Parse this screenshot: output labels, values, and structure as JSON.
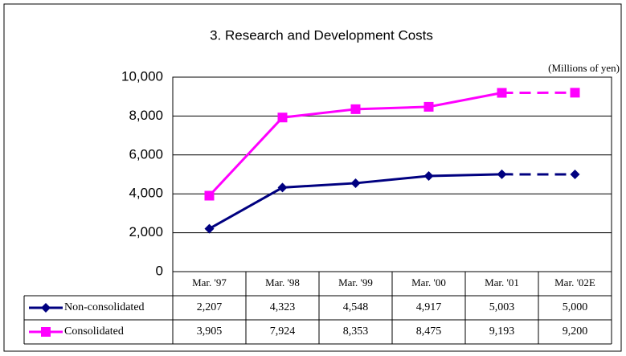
{
  "chart_data": {
    "type": "line",
    "title": "3. Research and Development Costs",
    "annotation": "(Millions of yen)",
    "categories": [
      "Mar. '97",
      "Mar. '98",
      "Mar. '99",
      "Mar. '00",
      "Mar. '01",
      "Mar. '02E"
    ],
    "series": [
      {
        "name": "Non-consolidated",
        "color": "#000080",
        "marker": "diamond",
        "values": [
          2207,
          4323,
          4548,
          4917,
          5003,
          5000
        ],
        "value_labels": [
          "2,207",
          "4,323",
          "4,548",
          "4,917",
          "5,003",
          "5,000"
        ]
      },
      {
        "name": "Consolidated",
        "color": "#ff00ff",
        "marker": "square",
        "values": [
          3905,
          7924,
          8353,
          8475,
          9193,
          9200
        ],
        "value_labels": [
          "3,905",
          "7,924",
          "8,353",
          "8,475",
          "9,193",
          "9,200"
        ]
      }
    ],
    "dashed_last_segment": true,
    "ylim": [
      0,
      10000
    ],
    "yticks": [
      0,
      {
        "value": 2000,
        "label": "2,000"
      },
      {
        "value": 4000,
        "label": "4,000"
      },
      {
        "value": 6000,
        "label": "6,000"
      },
      {
        "value": 8000,
        "label": "8,000"
      },
      {
        "value": 10000,
        "label": "10,000"
      }
    ],
    "grid": true
  }
}
